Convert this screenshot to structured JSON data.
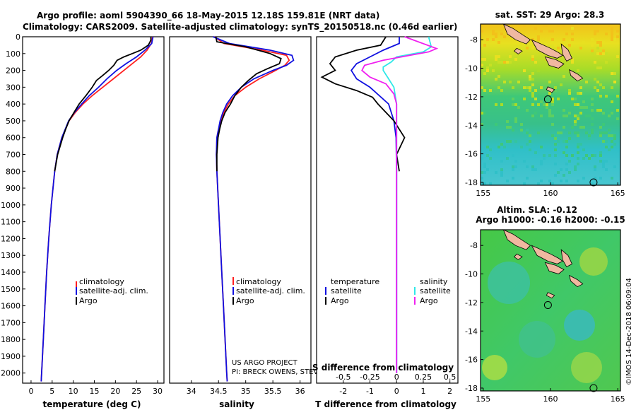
{
  "header": {
    "line1": "Argo profile: aoml 5904390_66 18-May-2015 12.18S 159.81E (NRT data)",
    "line2": "Climatology: CARS2009. Satellite-adjusted climatology: synTS_20150518.nc (0.46d earlier)"
  },
  "credits": {
    "project": "US ARGO PROJECT",
    "pis": "PI: BRECK OWENS, STEVE JAYNE, PAT ROBBINS",
    "imos": "©IMOS 14-Dec-2018 06:09:04"
  },
  "colors": {
    "climatology": "#ff2020",
    "satellite": "#1010e0",
    "argo": "#000000",
    "salinity_sat": "#30e8e8",
    "salinity_argo": "#f020f0",
    "land": "#f0b8a0"
  },
  "chart_data": [
    {
      "type": "line",
      "title": "",
      "xlabel": "temperature (deg C)",
      "ylabel": "",
      "xlim": [
        -2,
        31.5
      ],
      "ylim": [
        2060,
        0
      ],
      "x_ticks": [
        "0",
        "5",
        "10",
        "15",
        "20",
        "25",
        "30"
      ],
      "x_tick_values": [
        0,
        5,
        10,
        15,
        20,
        25,
        30
      ],
      "y_ticks": [
        "0",
        "100",
        "200",
        "300",
        "400",
        "500",
        "600",
        "700",
        "800",
        "900",
        "1000",
        "1100",
        "1200",
        "1300",
        "1400",
        "1500",
        "1600",
        "1700",
        "1800",
        "1900",
        "2000"
      ],
      "y_tick_values": [
        0,
        100,
        200,
        300,
        400,
        500,
        600,
        700,
        800,
        900,
        1000,
        1100,
        1200,
        1300,
        1400,
        1500,
        1600,
        1700,
        1800,
        1900,
        2000
      ],
      "legend": [
        "climatology",
        "satellite-adj. clim.",
        "Argo"
      ],
      "series": [
        {
          "name": "climatology",
          "depth": [
            0,
            40,
            80,
            120,
            160,
            200,
            250,
            300,
            350,
            400,
            450,
            500,
            600,
            700,
            800,
            1000,
            1200,
            1400,
            1600,
            1800,
            2000,
            2050
          ],
          "values": [
            28.8,
            28.5,
            27.5,
            26.0,
            24.0,
            22.0,
            19.5,
            17.0,
            14.5,
            12.3,
            10.5,
            9.0,
            7.3,
            6.2,
            5.6,
            4.8,
            4.2,
            3.7,
            3.3,
            2.9,
            2.5,
            2.4
          ]
        },
        {
          "name": "satellite-adj. clim.",
          "depth": [
            0,
            40,
            80,
            120,
            160,
            200,
            250,
            300,
            350,
            400,
            450,
            500,
            600,
            700,
            800,
            1000,
            1200,
            1400,
            1600,
            1800,
            2000,
            2050
          ],
          "values": [
            28.9,
            28.6,
            27.0,
            25.0,
            22.5,
            20.3,
            18.0,
            16.0,
            13.8,
            12.0,
            10.3,
            8.9,
            7.3,
            6.2,
            5.6,
            4.8,
            4.2,
            3.7,
            3.3,
            2.9,
            2.5,
            2.4
          ]
        },
        {
          "name": "Argo",
          "depth": [
            0,
            20,
            50,
            80,
            100,
            120,
            140,
            170,
            200,
            230,
            260,
            300,
            350,
            400,
            450,
            500,
            550,
            600,
            700,
            800
          ],
          "values": [
            28.4,
            28.4,
            27.8,
            26.0,
            24.0,
            22.0,
            20.4,
            19.6,
            18.4,
            17.0,
            15.5,
            14.5,
            13.0,
            11.4,
            10.2,
            9.0,
            8.2,
            7.5,
            6.3,
            5.6
          ]
        }
      ]
    },
    {
      "type": "line",
      "title": "",
      "xlabel": "salinity",
      "ylabel": "",
      "xlim": [
        33.6,
        36.2
      ],
      "ylim": [
        2060,
        0
      ],
      "x_ticks": [
        "34",
        "34.5",
        "35",
        "35.5",
        "36"
      ],
      "x_tick_values": [
        34,
        34.5,
        35,
        35.5,
        36
      ],
      "legend": [
        "climatology",
        "satellite-adj. clim.",
        "Argo"
      ],
      "series": [
        {
          "name": "climatology",
          "depth": [
            0,
            40,
            80,
            110,
            140,
            170,
            200,
            250,
            300,
            350,
            400,
            450,
            500,
            550,
            600,
            700,
            800,
            1000,
            1200,
            1400,
            1600,
            1800,
            2000,
            2050
          ],
          "values": [
            34.42,
            34.6,
            35.3,
            35.75,
            35.8,
            35.72,
            35.55,
            35.25,
            35.0,
            34.8,
            34.68,
            34.6,
            34.55,
            34.5,
            34.47,
            34.46,
            34.47,
            34.5,
            34.53,
            34.56,
            34.59,
            34.62,
            34.65,
            34.66
          ]
        },
        {
          "name": "satellite-adj. clim.",
          "depth": [
            0,
            40,
            80,
            110,
            140,
            170,
            200,
            250,
            300,
            350,
            400,
            450,
            500,
            550,
            600,
            700,
            800,
            1000,
            1200,
            1400,
            1600,
            1800,
            2000,
            2050
          ],
          "values": [
            34.4,
            34.7,
            35.45,
            35.85,
            35.88,
            35.75,
            35.5,
            35.15,
            34.92,
            34.76,
            34.65,
            34.58,
            34.53,
            34.5,
            34.47,
            34.46,
            34.47,
            34.5,
            34.53,
            34.56,
            34.59,
            34.62,
            34.65,
            34.66
          ]
        },
        {
          "name": "Argo",
          "depth": [
            0,
            30,
            60,
            100,
            130,
            160,
            190,
            220,
            260,
            300,
            350,
            400,
            450,
            500,
            550,
            600,
            700,
            800
          ],
          "values": [
            34.45,
            34.47,
            35.0,
            35.45,
            35.65,
            35.62,
            35.4,
            35.2,
            35.05,
            34.92,
            34.8,
            34.72,
            34.62,
            34.56,
            34.52,
            34.49,
            34.47,
            34.47
          ]
        }
      ]
    },
    {
      "type": "line",
      "title": "",
      "xlabel": "T difference from climatology",
      "x2label": "S difference from climatology",
      "xlim": [
        -3.0,
        2.3
      ],
      "ylim": [
        2060,
        0
      ],
      "x_ticks": [
        "-2",
        "-1",
        "0",
        "1",
        "2"
      ],
      "x_tick_values": [
        -2,
        -1,
        0,
        1,
        2
      ],
      "x2_ticks": [
        "-0.5",
        "-0.25",
        "0",
        "0.25",
        "0.5"
      ],
      "legend_left_title": "temperature",
      "legend_right_title": "salinity",
      "legend": [
        "satellite",
        "Argo",
        "satellite",
        "Argo"
      ],
      "series": [
        {
          "name": "temperature satellite",
          "depth": [
            0,
            40,
            80,
            120,
            160,
            200,
            250,
            300,
            400,
            500,
            600,
            800,
            1000,
            2000
          ],
          "values": [
            0.1,
            0.1,
            -0.5,
            -1.0,
            -1.5,
            -1.7,
            -1.5,
            -1.0,
            -0.3,
            -0.1,
            -0.02,
            0.0,
            0.0,
            0.0
          ]
        },
        {
          "name": "temperature Argo",
          "depth": [
            0,
            50,
            80,
            120,
            160,
            200,
            240,
            280,
            320,
            360,
            400,
            450,
            500,
            600,
            700,
            800
          ],
          "values": [
            -0.4,
            -0.6,
            -1.5,
            -2.3,
            -2.5,
            -2.3,
            -2.8,
            -2.3,
            -1.5,
            -0.9,
            -0.7,
            -0.4,
            -0.1,
            0.3,
            0.0,
            0.1
          ]
        },
        {
          "name": "salinity satellite",
          "depth": [
            0,
            60,
            90,
            120,
            150,
            180,
            200,
            250,
            300,
            400,
            500,
            600,
            800,
            1000,
            2000
          ],
          "values": [
            1.2,
            1.3,
            1.0,
            0.0,
            -0.2,
            -0.5,
            -0.5,
            -0.3,
            -0.1,
            0.0,
            0.0,
            0.0,
            0.0,
            0.0,
            0.0
          ]
        },
        {
          "name": "salinity Argo",
          "depth": [
            0,
            70,
            90,
            110,
            140,
            170,
            200,
            240,
            280,
            340,
            400,
            500,
            700,
            900,
            1200,
            1500,
            2000
          ],
          "values": [
            0.3,
            1.5,
            1.2,
            0.5,
            -0.5,
            -1.2,
            -1.3,
            -1.0,
            -0.4,
            -0.1,
            0.0,
            0.0,
            0.0,
            0.0,
            0.0,
            0.0,
            0.0
          ]
        }
      ]
    }
  ],
  "maps": [
    {
      "title": "sat. SST: 29 Argo: 28.3",
      "subtitle": "",
      "x_ticks": [
        "155",
        "160",
        "165"
      ],
      "y_ticks": [
        "-8",
        "-10",
        "-12",
        "-14",
        "-16",
        "-18"
      ],
      "lon_range": [
        154.8,
        165.2
      ],
      "lat_range": [
        -18.2,
        -6.9
      ],
      "argo_position": [
        159.81,
        -12.18
      ]
    },
    {
      "title": "Altim. SLA: -0.12",
      "subtitle": "Argo h1000: -0.16 h2000: -0.15",
      "x_ticks": [
        "155",
        "160",
        "165"
      ],
      "y_ticks": [
        "-8",
        "-10",
        "-12",
        "-14",
        "-16",
        "-18"
      ],
      "lon_range": [
        154.8,
        165.2
      ],
      "lat_range": [
        -18.2,
        -6.9
      ],
      "argo_position": [
        159.81,
        -12.18
      ]
    }
  ]
}
